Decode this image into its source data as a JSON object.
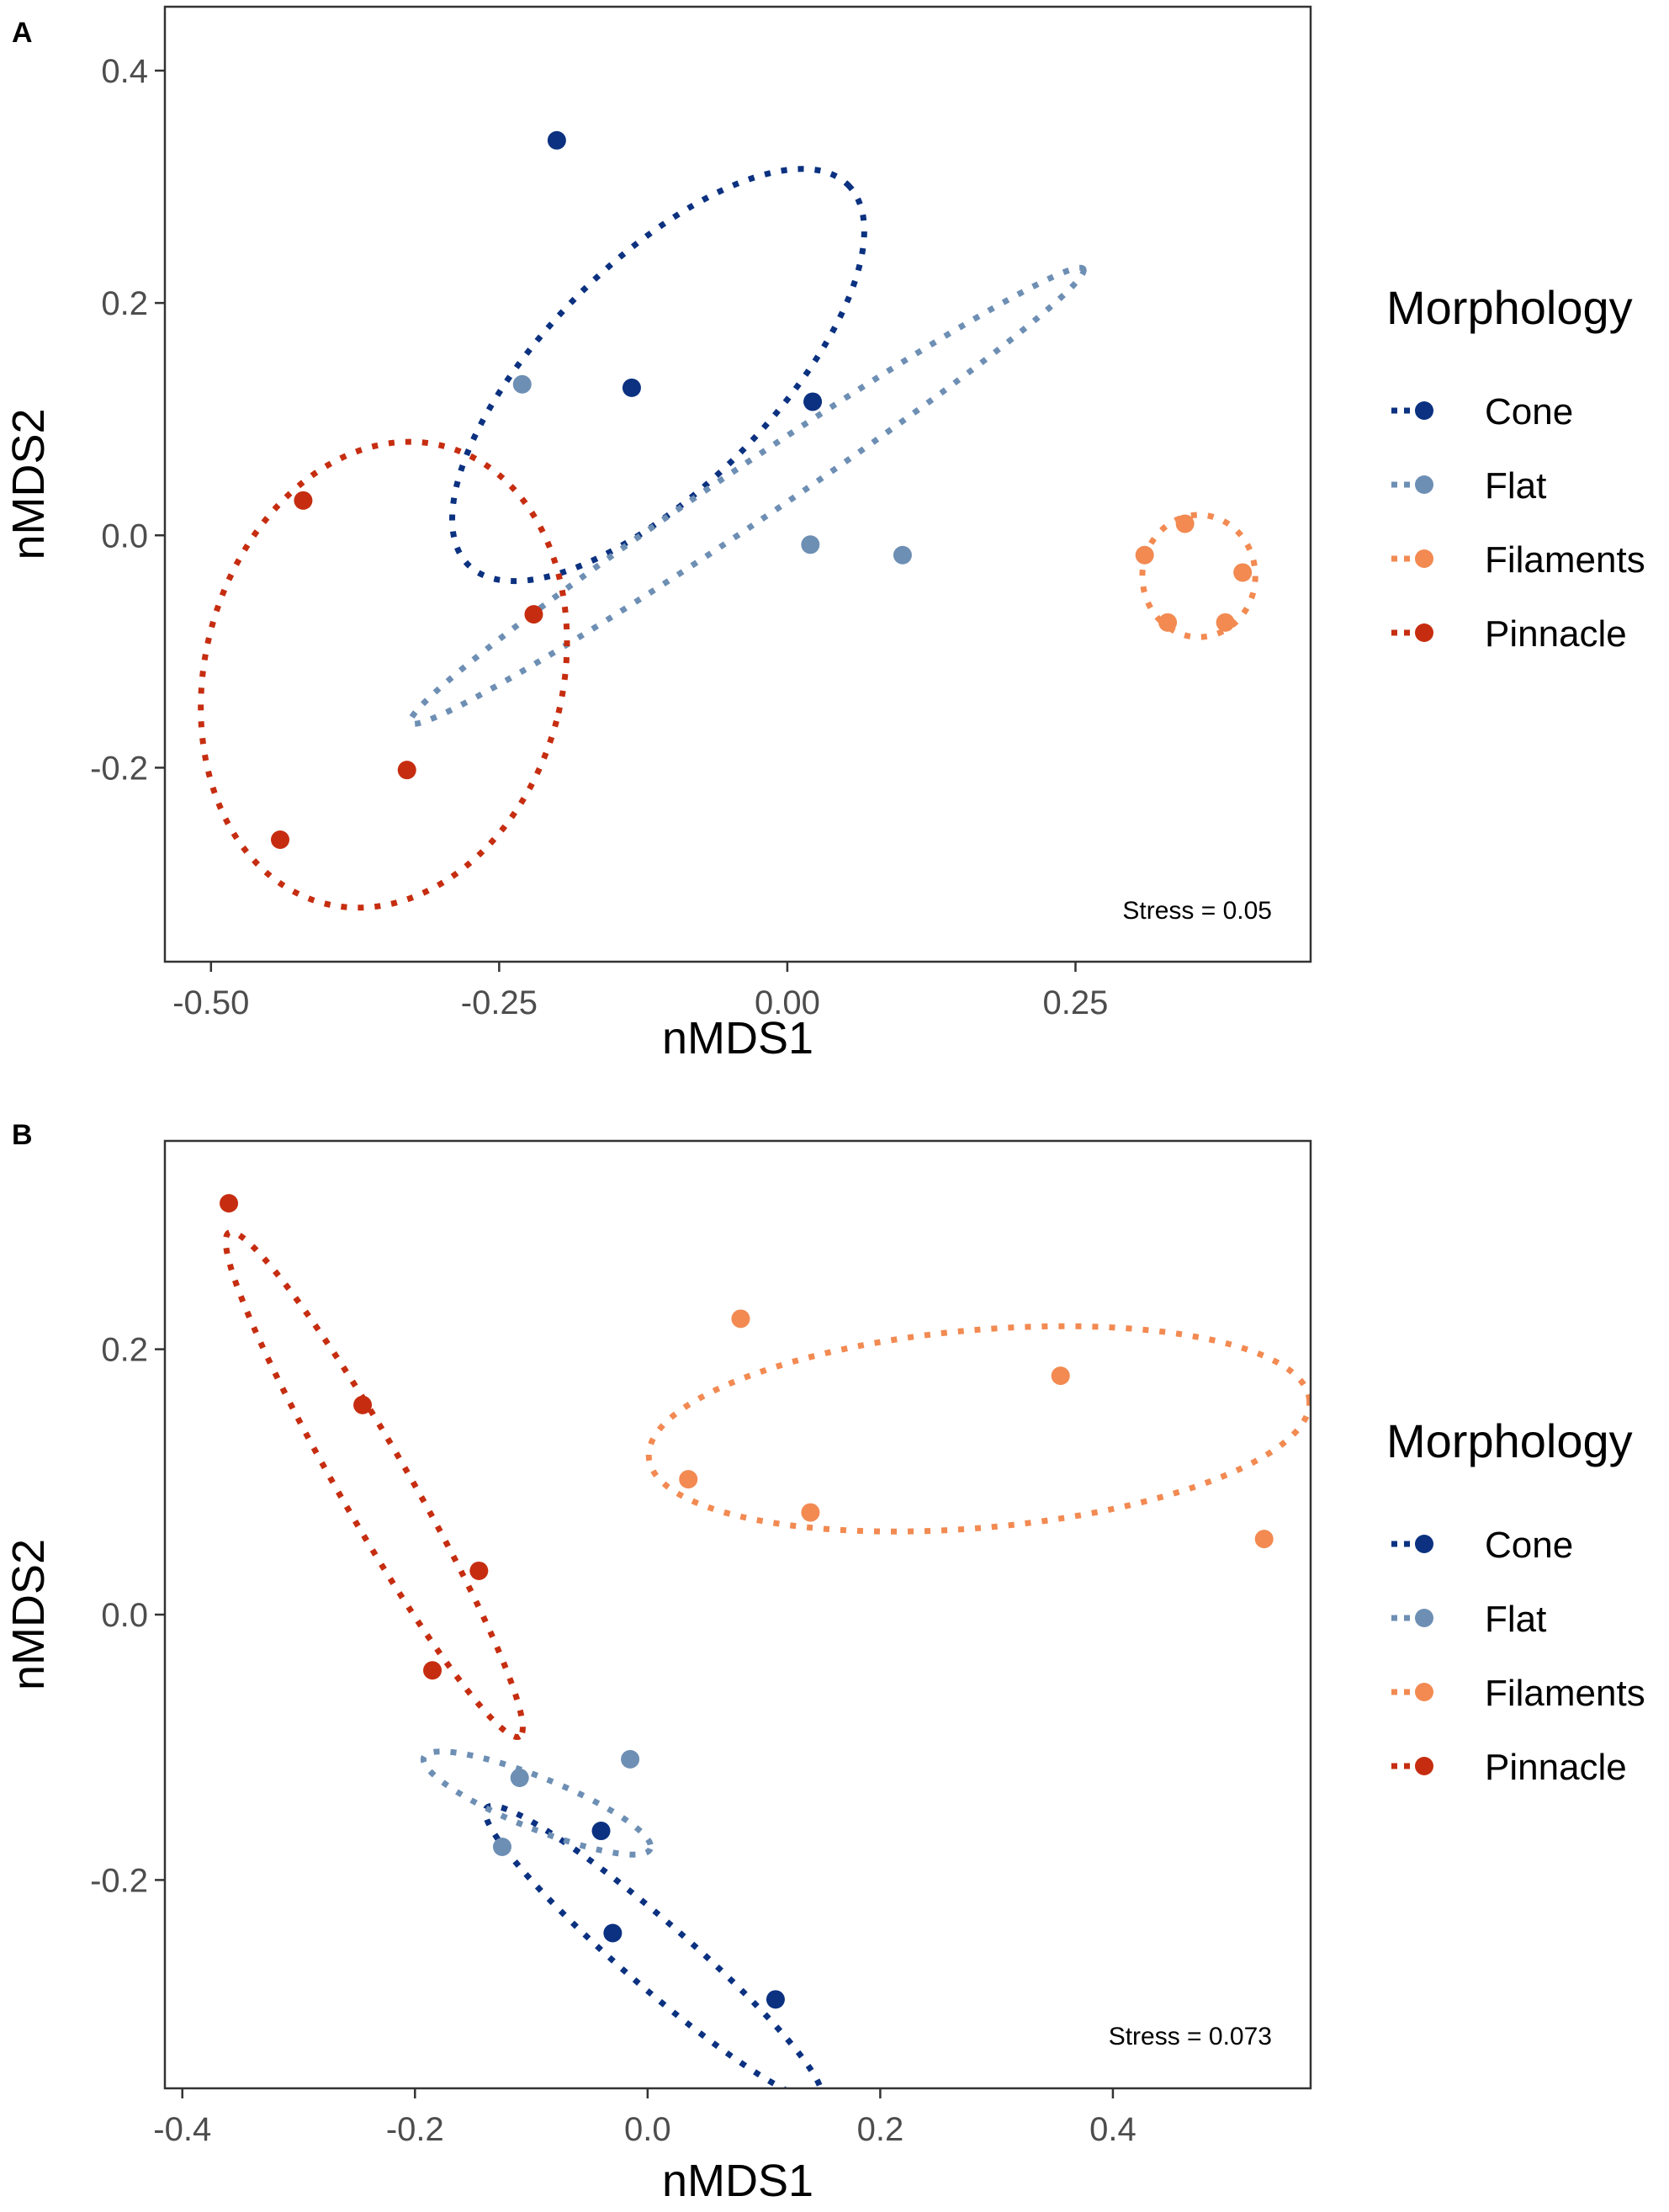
{
  "colors": {
    "Cone": "#0b3180",
    "Flat": "#6e8fb4",
    "Filaments": "#f28a52",
    "Pinnacle": "#c62d10"
  },
  "legend": {
    "title": "Morphology",
    "entries": [
      "Cone",
      "Flat",
      "Filaments",
      "Pinnacle"
    ]
  },
  "chart_data": [
    {
      "type": "scatter",
      "panel": "A",
      "xlabel": "nMDS1",
      "ylabel": "nMDS2",
      "xlim": [
        -0.54,
        0.454
      ],
      "ylim": [
        -0.367,
        0.455
      ],
      "xticks": [
        -0.5,
        -0.25,
        0.0,
        0.25
      ],
      "xtick_labels": [
        "-0.50",
        "-0.25",
        "0.00",
        "0.25"
      ],
      "yticks": [
        -0.2,
        0.0,
        0.2,
        0.4
      ],
      "ytick_labels": [
        "-0.2",
        "0.0",
        "0.2",
        "0.4"
      ],
      "annotation": "Stress = 0.05",
      "grid": false,
      "series": [
        {
          "name": "Cone",
          "points": [
            [
              -0.2,
              0.34
            ],
            [
              -0.135,
              0.127
            ],
            [
              0.022,
              0.115
            ]
          ],
          "ellipse": {
            "center": [
              -0.112,
              0.138
            ],
            "rx": 0.233,
            "ry": 0.098,
            "angle_deg": -45
          }
        },
        {
          "name": "Flat",
          "points": [
            [
              -0.23,
              0.13
            ],
            [
              0.02,
              -0.008
            ],
            [
              0.1,
              -0.017
            ]
          ],
          "ellipse": {
            "center": [
              -0.035,
              0.034
            ],
            "rx": 0.352,
            "ry": 0.024,
            "angle_deg": -34
          }
        },
        {
          "name": "Filaments",
          "points": [
            [
              0.31,
              -0.017
            ],
            [
              0.345,
              0.01
            ],
            [
              0.395,
              -0.032
            ],
            [
              0.38,
              -0.075
            ],
            [
              0.33,
              -0.075
            ]
          ],
          "ellipse": {
            "center": [
              0.357,
              -0.035
            ],
            "rx": 0.049,
            "ry": 0.053,
            "angle_deg": 0
          }
        },
        {
          "name": "Pinnacle",
          "points": [
            [
              -0.42,
              0.03
            ],
            [
              -0.22,
              -0.068
            ],
            [
              -0.33,
              -0.202
            ],
            [
              -0.44,
              -0.262
            ]
          ],
          "ellipse": {
            "center": [
              -0.35,
              -0.12
            ],
            "rx": 0.155,
            "ry": 0.205,
            "angle_deg": 15
          }
        }
      ]
    },
    {
      "type": "scatter",
      "panel": "B",
      "xlabel": "nMDS1",
      "ylabel": "nMDS2",
      "xlim": [
        -0.415,
        0.57
      ],
      "ylim": [
        -0.357,
        0.357
      ],
      "xticks": [
        -0.4,
        -0.2,
        0.0,
        0.2,
        0.4
      ],
      "xtick_labels": [
        "-0.4",
        "-0.2",
        "0.0",
        "0.2",
        "0.4"
      ],
      "yticks": [
        -0.2,
        0.0,
        0.2
      ],
      "ytick_labels": [
        "-0.2",
        "0.0",
        "0.2"
      ],
      "annotation": "Stress = 0.073",
      "grid": false,
      "series": [
        {
          "name": "Cone",
          "points": [
            [
              -0.04,
              -0.163
            ],
            [
              -0.03,
              -0.24
            ],
            [
              0.11,
              -0.29
            ]
          ],
          "ellipse": {
            "center": [
              0.005,
              -0.255
            ],
            "rx": 0.19,
            "ry": 0.028,
            "angle_deg": 41
          }
        },
        {
          "name": "Flat",
          "points": [
            [
              -0.11,
              -0.123
            ],
            [
              -0.125,
              -0.175
            ],
            [
              -0.015,
              -0.109
            ]
          ],
          "ellipse": {
            "center": [
              -0.095,
              -0.142
            ],
            "rx": 0.105,
            "ry": 0.022,
            "angle_deg": 22
          }
        },
        {
          "name": "Filaments",
          "points": [
            [
              0.08,
              0.223
            ],
            [
              0.355,
              0.18
            ],
            [
              0.035,
              0.102
            ],
            [
              0.14,
              0.077
            ],
            [
              0.53,
              0.057
            ]
          ],
          "ellipse": {
            "center": [
              0.285,
              0.14
            ],
            "rx": 0.285,
            "ry": 0.085,
            "angle_deg": -5
          }
        },
        {
          "name": "Pinnacle",
          "points": [
            [
              -0.36,
              0.31
            ],
            [
              -0.245,
              0.158
            ],
            [
              -0.145,
              0.033
            ],
            [
              -0.185,
              -0.042
            ]
          ],
          "ellipse": {
            "center": [
              -0.235,
              0.098
            ],
            "rx": 0.25,
            "ry": 0.03,
            "angle_deg": 60
          }
        }
      ]
    }
  ]
}
